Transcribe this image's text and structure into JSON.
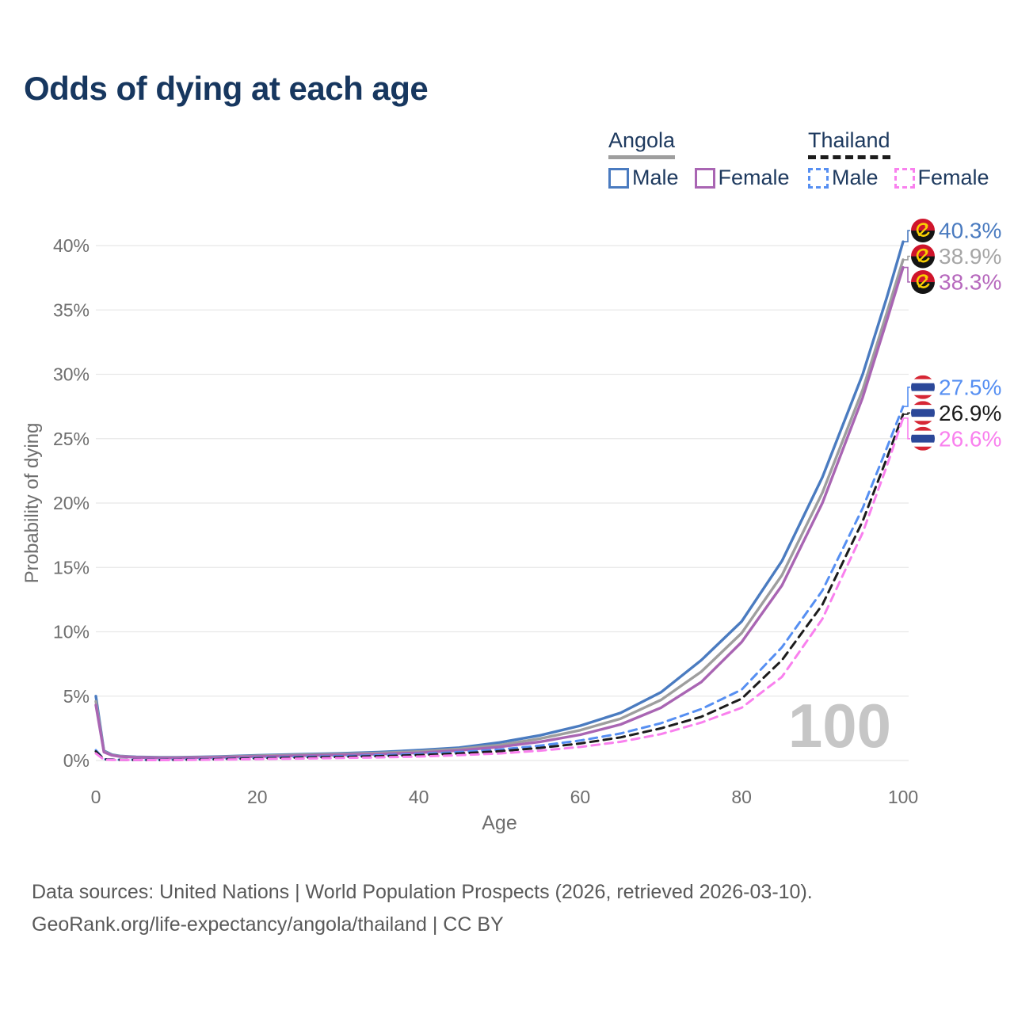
{
  "title": "Odds of dying at each age",
  "legend": {
    "groups": [
      {
        "label": "Angola",
        "line_style": "solid",
        "line_color": "#9e9e9e",
        "items": [
          {
            "label": "Male",
            "line_style": "solid",
            "color": "#4a7bc0"
          },
          {
            "label": "Female",
            "line_style": "solid",
            "color": "#a965b3"
          }
        ]
      },
      {
        "label": "Thailand",
        "line_style": "dashed",
        "line_color": "#1c1c1c",
        "items": [
          {
            "label": "Male",
            "line_style": "dashed",
            "color": "#568ff2"
          },
          {
            "label": "Female",
            "line_style": "dashed",
            "color": "#f980ee"
          }
        ]
      }
    ]
  },
  "footer": {
    "line1": "Data sources: United Nations | World Population Prospects (2026, retrieved 2026-03-10).",
    "line2": "GeoRank.org/life-expectancy/angola/thailand | CC BY"
  },
  "chart_data": {
    "type": "line",
    "title": "Odds of dying at each age",
    "xlabel": "Age",
    "ylabel": "Probability of dying",
    "xlim": [
      0,
      100
    ],
    "ylim": [
      0,
      40
    ],
    "grid": "horizontal",
    "legend_position": "top-right",
    "watermark": "100",
    "x_ticks": [
      {
        "label": "0",
        "value": 0
      },
      {
        "label": "20",
        "value": 20
      },
      {
        "label": "40",
        "value": 40
      },
      {
        "label": "60",
        "value": 60
      },
      {
        "label": "80",
        "value": 80
      },
      {
        "label": "100",
        "value": 100
      }
    ],
    "y_ticks": [
      {
        "label": "0%",
        "value": 0
      },
      {
        "label": "5%",
        "value": 5
      },
      {
        "label": "10%",
        "value": 10
      },
      {
        "label": "15%",
        "value": 15
      },
      {
        "label": "20%",
        "value": 20
      },
      {
        "label": "25%",
        "value": 25
      },
      {
        "label": "30%",
        "value": 30
      },
      {
        "label": "35%",
        "value": 35
      },
      {
        "label": "40%",
        "value": 40
      }
    ],
    "style": {
      "grid_color": "#e8e8e8",
      "tick_color": "#6e6e6e",
      "axis_label_color": "#6e6e6e",
      "watermark_color": "#c6c6c6",
      "title_color": "#17375f",
      "background": "#ffffff"
    },
    "flag_colors": {
      "angola_red": "#cf142b",
      "angola_black": "#141414",
      "angola_yellow": "#f9cf02",
      "thailand_red": "#d62634",
      "thailand_white": "#ffffff",
      "thailand_blue": "#2b4899"
    },
    "series": [
      {
        "id": "angola-male",
        "name": "Angola Male",
        "country": "angola",
        "sex": "male",
        "color": "#4a7bc0",
        "label_color": "#4a7bc0",
        "dash": "solid",
        "end_label": "40.3%",
        "end_value": 40.3,
        "x": [
          0,
          1,
          2,
          3,
          5,
          8,
          10,
          15,
          20,
          25,
          30,
          35,
          40,
          45,
          50,
          55,
          60,
          65,
          70,
          75,
          80,
          85,
          90,
          95,
          98,
          100
        ],
        "y": [
          5.0,
          0.75,
          0.45,
          0.35,
          0.28,
          0.25,
          0.25,
          0.3,
          0.4,
          0.48,
          0.55,
          0.65,
          0.8,
          1.0,
          1.4,
          1.95,
          2.7,
          3.7,
          5.3,
          7.8,
          10.8,
          15.5,
          22.0,
          30.0,
          36.0,
          40.3
        ]
      },
      {
        "id": "angola-both",
        "name": "Angola Both sexes",
        "country": "angola",
        "sex": "both",
        "color": "#9e9e9e",
        "label_color": "#a6a6a6",
        "dash": "solid",
        "end_label": "38.9%",
        "end_value": 38.9,
        "x": [
          0,
          1,
          2,
          3,
          5,
          8,
          10,
          15,
          20,
          25,
          30,
          35,
          40,
          45,
          50,
          55,
          60,
          65,
          70,
          75,
          80,
          85,
          90,
          95,
          98,
          100
        ],
        "y": [
          4.6,
          0.7,
          0.42,
          0.33,
          0.26,
          0.23,
          0.23,
          0.27,
          0.36,
          0.43,
          0.5,
          0.58,
          0.7,
          0.9,
          1.2,
          1.7,
          2.35,
          3.25,
          4.7,
          6.9,
          9.9,
          14.4,
          20.8,
          28.8,
          34.8,
          38.9
        ]
      },
      {
        "id": "angola-female",
        "name": "Angola Female",
        "country": "angola",
        "sex": "female",
        "color": "#a965b3",
        "label_color": "#b668bd",
        "dash": "solid",
        "end_label": "38.3%",
        "end_value": 38.3,
        "x": [
          0,
          1,
          2,
          3,
          5,
          8,
          10,
          15,
          20,
          25,
          30,
          35,
          40,
          45,
          50,
          55,
          60,
          65,
          70,
          75,
          80,
          85,
          90,
          95,
          98,
          100
        ],
        "y": [
          4.3,
          0.65,
          0.4,
          0.3,
          0.24,
          0.2,
          0.2,
          0.24,
          0.31,
          0.37,
          0.43,
          0.5,
          0.6,
          0.78,
          1.05,
          1.45,
          2.0,
          2.8,
          4.1,
          6.1,
          9.2,
          13.6,
          20.0,
          28.2,
          34.2,
          38.3
        ]
      },
      {
        "id": "thailand-male",
        "name": "Thailand Male",
        "country": "thailand",
        "sex": "male",
        "color": "#568ff2",
        "label_color": "#568ff2",
        "dash": "dashed",
        "end_label": "27.5%",
        "end_value": 27.5,
        "x": [
          0,
          1,
          2,
          3,
          5,
          8,
          10,
          15,
          20,
          25,
          30,
          35,
          40,
          45,
          50,
          55,
          60,
          65,
          70,
          75,
          80,
          85,
          90,
          95,
          98,
          100
        ],
        "y": [
          0.8,
          0.1,
          0.08,
          0.06,
          0.05,
          0.05,
          0.06,
          0.12,
          0.2,
          0.28,
          0.33,
          0.4,
          0.5,
          0.65,
          0.85,
          1.15,
          1.55,
          2.1,
          2.9,
          4.0,
          5.5,
          8.8,
          13.2,
          19.6,
          24.3,
          27.5
        ]
      },
      {
        "id": "thailand-both",
        "name": "Thailand Both sexes",
        "country": "thailand",
        "sex": "both",
        "color": "#1c1c1c",
        "label_color": "#1c1c1c",
        "dash": "dashed",
        "end_label": "26.9%",
        "end_value": 26.9,
        "x": [
          0,
          1,
          2,
          3,
          5,
          8,
          10,
          15,
          20,
          25,
          30,
          35,
          40,
          45,
          50,
          55,
          60,
          65,
          70,
          75,
          80,
          85,
          90,
          95,
          98,
          100
        ],
        "y": [
          0.7,
          0.09,
          0.07,
          0.055,
          0.045,
          0.04,
          0.05,
          0.1,
          0.16,
          0.22,
          0.27,
          0.33,
          0.42,
          0.55,
          0.72,
          0.98,
          1.32,
          1.8,
          2.5,
          3.4,
          4.8,
          7.8,
          12.1,
          18.6,
          23.5,
          26.9
        ]
      },
      {
        "id": "thailand-female",
        "name": "Thailand Female",
        "country": "thailand",
        "sex": "female",
        "color": "#f980ee",
        "label_color": "#f980ee",
        "dash": "dashed",
        "end_label": "26.6%",
        "end_value": 26.6,
        "x": [
          0,
          1,
          2,
          3,
          5,
          8,
          10,
          15,
          20,
          25,
          30,
          35,
          40,
          45,
          50,
          55,
          60,
          65,
          70,
          75,
          80,
          85,
          90,
          95,
          98,
          100
        ],
        "y": [
          0.55,
          0.07,
          0.05,
          0.045,
          0.035,
          0.03,
          0.04,
          0.07,
          0.11,
          0.15,
          0.19,
          0.24,
          0.31,
          0.41,
          0.55,
          0.76,
          1.05,
          1.45,
          2.05,
          2.95,
          4.1,
          6.5,
          11.0,
          17.7,
          22.9,
          26.6
        ]
      }
    ]
  }
}
